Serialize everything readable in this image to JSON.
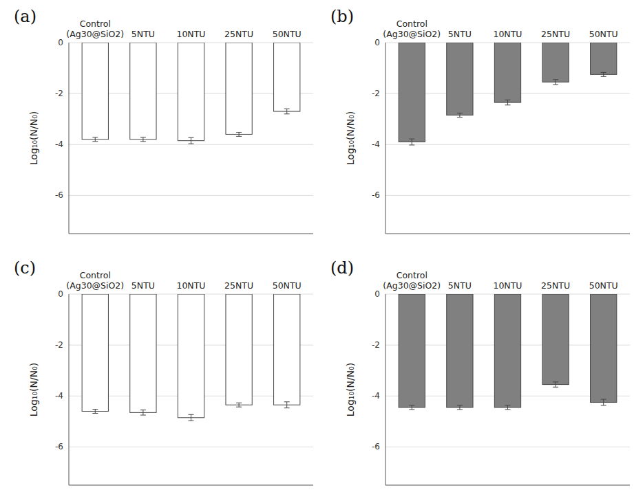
{
  "chart_data": [
    {
      "type": "bar",
      "title": "(a)",
      "categories": [
        "Control\n(Ag30@SiO2)",
        "5NTU",
        "10NTU",
        "25NTU",
        "50NTU"
      ],
      "values": [
        -3.8,
        -3.8,
        -3.85,
        -3.6,
        -2.7
      ],
      "errors": [
        0.08,
        0.08,
        0.12,
        0.08,
        0.1
      ],
      "color": "white",
      "y_label": "Log₁₀(N/N₀)",
      "ylim": [
        -7.5,
        0
      ],
      "yticks": [
        0,
        -2,
        -4,
        -6
      ],
      "grid": true
    },
    {
      "type": "bar",
      "title": "(b)",
      "categories": [
        "Control\n(Ag30@SiO2)",
        "5NTU",
        "10NTU",
        "25NTU",
        "50NTU"
      ],
      "values": [
        -3.9,
        -2.85,
        -2.35,
        -1.55,
        -1.25
      ],
      "errors": [
        0.12,
        0.08,
        0.1,
        0.1,
        0.08
      ],
      "color": "#808080",
      "y_label": "Log₁₀(N/N₀)",
      "ylim": [
        -7.5,
        0
      ],
      "yticks": [
        0,
        -2,
        -4,
        -6
      ],
      "grid": true
    },
    {
      "type": "bar",
      "title": "(c)",
      "categories": [
        "Control\n(Ag30@SiO2)",
        "5NTU",
        "10NTU",
        "25NTU",
        "50NTU"
      ],
      "values": [
        -4.6,
        -4.65,
        -4.85,
        -4.35,
        -4.35
      ],
      "errors": [
        0.08,
        0.1,
        0.12,
        0.08,
        0.12
      ],
      "color": "white",
      "y_label": "Log₁₀(N/N₀)",
      "ylim": [
        -7.5,
        0
      ],
      "yticks": [
        0,
        -2,
        -4,
        -6
      ],
      "grid": true
    },
    {
      "type": "bar",
      "title": "(d)",
      "categories": [
        "Control\n(Ag30@SiO2)",
        "5NTU",
        "10NTU",
        "25NTU",
        "50NTU"
      ],
      "values": [
        -4.45,
        -4.45,
        -4.45,
        -3.55,
        -4.25
      ],
      "errors": [
        0.08,
        0.08,
        0.08,
        0.1,
        0.12
      ],
      "color": "#808080",
      "y_label": "Log₁₀(N/N₀)",
      "ylim": [
        -7.5,
        0
      ],
      "yticks": [
        0,
        -2,
        -4,
        -6
      ],
      "grid": true
    }
  ]
}
